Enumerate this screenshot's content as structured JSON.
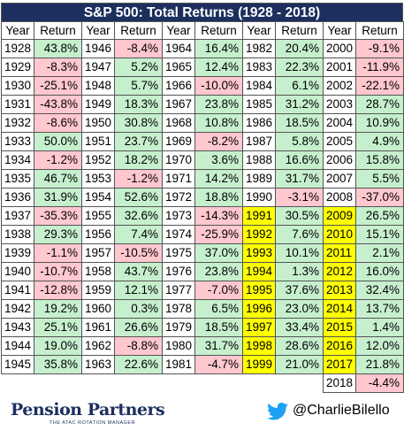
{
  "title": "S&P 500: Total Returns (1928 - 2018)",
  "header": {
    "year": "Year",
    "return": "Return"
  },
  "highlight_color": "#ffff00",
  "positive_color": "#c6efce",
  "negative_color": "#ffc7ce",
  "columns": [
    {
      "years": [
        1928,
        1929,
        1930,
        1931,
        1932,
        1933,
        1934,
        1935,
        1936,
        1937,
        1938,
        1939,
        1940,
        1941,
        1942,
        1943,
        1944,
        1945
      ],
      "returns": [
        "43.8%",
        "-8.3%",
        "-25.1%",
        "-43.8%",
        "-8.6%",
        "50.0%",
        "-1.2%",
        "46.7%",
        "31.9%",
        "-35.3%",
        "29.3%",
        "-1.1%",
        "-10.7%",
        "-12.8%",
        "19.2%",
        "25.1%",
        "19.0%",
        "35.8%"
      ],
      "highlight": [
        false,
        false,
        false,
        false,
        false,
        false,
        false,
        false,
        false,
        false,
        false,
        false,
        false,
        false,
        false,
        false,
        false,
        false
      ]
    },
    {
      "years": [
        1946,
        1947,
        1948,
        1949,
        1950,
        1951,
        1952,
        1953,
        1954,
        1955,
        1956,
        1957,
        1958,
        1959,
        1960,
        1961,
        1962,
        1963
      ],
      "returns": [
        "-8.4%",
        "5.2%",
        "5.7%",
        "18.3%",
        "30.8%",
        "23.7%",
        "18.2%",
        "-1.2%",
        "52.6%",
        "32.6%",
        "7.4%",
        "-10.5%",
        "43.7%",
        "12.1%",
        "0.3%",
        "26.6%",
        "-8.8%",
        "22.6%"
      ],
      "highlight": [
        false,
        false,
        false,
        false,
        false,
        false,
        false,
        false,
        false,
        false,
        false,
        false,
        false,
        false,
        false,
        false,
        false,
        false
      ]
    },
    {
      "years": [
        1964,
        1965,
        1966,
        1967,
        1968,
        1969,
        1970,
        1971,
        1972,
        1973,
        1974,
        1975,
        1976,
        1977,
        1978,
        1979,
        1980,
        1981
      ],
      "returns": [
        "16.4%",
        "12.4%",
        "-10.0%",
        "23.8%",
        "10.8%",
        "-8.2%",
        "3.6%",
        "14.2%",
        "18.8%",
        "-14.3%",
        "-25.9%",
        "37.0%",
        "23.8%",
        "-7.0%",
        "6.5%",
        "18.5%",
        "31.7%",
        "-4.7%"
      ],
      "highlight": [
        false,
        false,
        false,
        false,
        false,
        false,
        false,
        false,
        false,
        false,
        false,
        false,
        false,
        false,
        false,
        false,
        false,
        false
      ]
    },
    {
      "years": [
        1982,
        1983,
        1984,
        1985,
        1986,
        1987,
        1988,
        1989,
        1990,
        1991,
        1992,
        1993,
        1994,
        1995,
        1996,
        1997,
        1998,
        1999
      ],
      "returns": [
        "20.4%",
        "22.3%",
        "6.1%",
        "31.2%",
        "18.5%",
        "5.8%",
        "16.6%",
        "31.7%",
        "-3.1%",
        "30.5%",
        "7.6%",
        "10.1%",
        "1.3%",
        "37.6%",
        "23.0%",
        "33.4%",
        "28.6%",
        "21.0%"
      ],
      "highlight": [
        false,
        false,
        false,
        false,
        false,
        false,
        false,
        false,
        false,
        true,
        true,
        true,
        true,
        true,
        true,
        true,
        true,
        true
      ]
    },
    {
      "years": [
        2000,
        2001,
        2002,
        2003,
        2004,
        2005,
        2006,
        2007,
        2008,
        2009,
        2010,
        2011,
        2012,
        2013,
        2014,
        2015,
        2016,
        2017,
        2018
      ],
      "returns": [
        "-9.1%",
        "-11.9%",
        "-22.1%",
        "28.7%",
        "10.9%",
        "4.9%",
        "15.8%",
        "5.5%",
        "-37.0%",
        "26.5%",
        "15.1%",
        "2.1%",
        "16.0%",
        "32.4%",
        "13.7%",
        "1.4%",
        "12.0%",
        "21.8%",
        "-4.4%"
      ],
      "highlight": [
        false,
        false,
        false,
        false,
        false,
        false,
        false,
        false,
        false,
        true,
        true,
        true,
        true,
        true,
        true,
        true,
        true,
        true,
        false
      ]
    }
  ],
  "footer": {
    "logo": "Pension Partners",
    "tagline": "THE ATAC ROTATION MANAGER",
    "handle": "@CharlieBilello"
  }
}
